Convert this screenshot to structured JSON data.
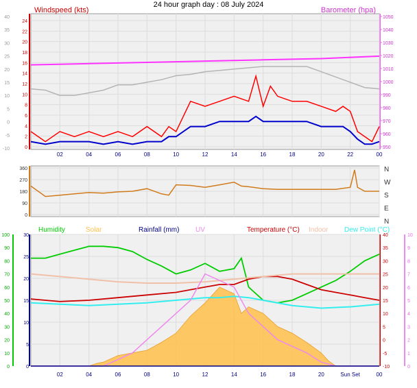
{
  "title": "24 hour graph day : 08 July 2024",
  "colors": {
    "wind": "#ff0000",
    "wind_avg": "#0000cc",
    "baro": "#ff33ff",
    "temp_grey": "#b4b4b4",
    "dir": "#d07a1a",
    "humidity": "#00cc00",
    "solar": "#ffc04a",
    "rain": "#000080",
    "uv": "#ee88ee",
    "temperature": "#cc0000",
    "indoor": "#f0c0a8",
    "dewpoint": "#33eeee",
    "panel_bg": "#f0f0f0"
  },
  "chart_data": [
    {
      "type": "line",
      "panel": "wind",
      "left_label": "Windspeed (kts)",
      "right_label": "Barometer (hpa)",
      "x_ticks": [
        "02",
        "04",
        "06",
        "08",
        "10",
        "12",
        "14",
        "16",
        "18",
        "20",
        "22",
        "00"
      ],
      "left_axis_ticks": [
        "24",
        "22",
        "20",
        "18",
        "16",
        "14",
        "12",
        "10",
        "8",
        "6",
        "4",
        "2",
        "0"
      ],
      "left_axis2_ticks": [
        "40",
        "35",
        "30",
        "25",
        "20",
        "15",
        "10",
        "5",
        "0",
        "-5",
        "-10"
      ],
      "right_axis_ticks": [
        "1050",
        "1040",
        "1030",
        "1020",
        "1010",
        "1000",
        "990",
        "980",
        "970",
        "960",
        "950"
      ],
      "ylim_wind": [
        0,
        25
      ],
      "ylim_baro": [
        945,
        1050
      ],
      "series": [
        {
          "name": "gust",
          "color_key": "wind",
          "x": [
            0,
            1,
            2,
            3,
            4,
            5,
            6,
            7,
            8,
            9,
            9.5,
            10,
            11,
            12,
            13,
            14,
            15,
            15.5,
            16,
            16.5,
            17,
            18,
            19,
            20,
            21,
            21.5,
            22,
            22.5,
            23,
            23.5,
            24
          ],
          "y": [
            3,
            1,
            3,
            2,
            3,
            2,
            3,
            2,
            4,
            2,
            4,
            3,
            9,
            8,
            9,
            10,
            9,
            14,
            8,
            12,
            10,
            9,
            9,
            8,
            7,
            8,
            7,
            3,
            2,
            1,
            4
          ]
        },
        {
          "name": "average",
          "color_key": "wind_avg",
          "x": [
            0,
            1,
            2,
            3,
            4,
            5,
            6,
            7,
            8,
            9,
            9.5,
            10,
            11,
            12,
            13,
            14,
            15,
            15.5,
            16,
            16.5,
            17,
            18,
            19,
            20,
            21,
            21.5,
            22,
            22.5,
            23,
            23.5,
            24
          ],
          "y": [
            1,
            0.5,
            1,
            1,
            1,
            0.5,
            1,
            0.5,
            1,
            1,
            2,
            2,
            4,
            4,
            5,
            5,
            5,
            6,
            5,
            5,
            5,
            5,
            5,
            4,
            4,
            4,
            3,
            1.5,
            0.5,
            0.5,
            1
          ]
        },
        {
          "name": "barometer",
          "color_key": "baro",
          "x": [
            0,
            4,
            8,
            12,
            16,
            20,
            24
          ],
          "y": [
            1011,
            1012,
            1013,
            1014,
            1015,
            1016,
            1018
          ]
        },
        {
          "name": "temperature",
          "color_key": "temp_grey",
          "x": [
            0,
            1,
            2,
            3,
            4,
            5,
            6,
            7,
            8,
            9,
            10,
            11,
            12,
            13,
            14,
            15,
            16,
            17,
            18,
            19,
            20,
            21,
            22,
            23,
            24
          ],
          "y": [
            12.5,
            12,
            10,
            10,
            11,
            12,
            14,
            14,
            15,
            16,
            17.5,
            18,
            19,
            19.5,
            20,
            20.5,
            21,
            21,
            21,
            21,
            19,
            17,
            15,
            13,
            12.5
          ]
        }
      ]
    },
    {
      "type": "line",
      "panel": "direction",
      "left_axis_ticks": [
        "360",
        "270",
        "180",
        "90",
        "0"
      ],
      "right_axis_ticks": [
        "N",
        "W",
        "S",
        "E",
        "N"
      ],
      "ylim": [
        0,
        360
      ],
      "series": [
        {
          "name": "direction",
          "color_key": "dir",
          "x": [
            0,
            1,
            2,
            3,
            4,
            5,
            6,
            7,
            8,
            9,
            9.5,
            10,
            11,
            12,
            13,
            14,
            14.5,
            15,
            16,
            17,
            18,
            19,
            20,
            21,
            22,
            22.3,
            22.5,
            23,
            24
          ],
          "y": [
            220,
            140,
            150,
            160,
            170,
            165,
            175,
            180,
            200,
            160,
            150,
            230,
            225,
            210,
            230,
            250,
            220,
            215,
            200,
            195,
            195,
            195,
            195,
            195,
            210,
            345,
            210,
            180,
            180
          ]
        }
      ]
    },
    {
      "type": "line",
      "panel": "atmosphere",
      "legend": [
        "Humidity",
        "Solar",
        "Rainfall (mm)",
        "UV",
        "Temperature (°C)",
        "Indoor",
        "Dew Point (°C)"
      ],
      "x_ticks": [
        "02",
        "04",
        "06",
        "08",
        "10",
        "12",
        "14",
        "16",
        "18",
        "20",
        "Sun Set",
        "00"
      ],
      "left_axis_humidity_ticks": [
        "100",
        "90",
        "80",
        "70",
        "60",
        "50",
        "40",
        "30",
        "20",
        "10",
        "0"
      ],
      "left_axis_rain_ticks": [
        "30",
        "25",
        "20",
        "15",
        "10",
        "5",
        "0"
      ],
      "right_axis_temp_ticks": [
        "40",
        "35",
        "30",
        "25",
        "20",
        "15",
        "10",
        "5",
        "0",
        "-5",
        "-10"
      ],
      "right_axis_uv_ticks": [
        "10",
        "9",
        "8",
        "7",
        "6",
        "5",
        "4",
        "3",
        "2",
        "1",
        "0"
      ],
      "ylim_humidity": [
        0,
        100
      ],
      "ylim_temp": [
        -10,
        40
      ],
      "ylim_uv": [
        0,
        10
      ],
      "series": [
        {
          "name": "Humidity",
          "color_key": "humidity",
          "axis": "humidity",
          "x": [
            0,
            1,
            2,
            3,
            4,
            5,
            6,
            7,
            8,
            9,
            10,
            11,
            12,
            13,
            14,
            14.5,
            15,
            16,
            17,
            18,
            19,
            20,
            21,
            22,
            23,
            24
          ],
          "y": [
            82,
            82,
            85,
            88,
            91,
            91,
            90,
            87,
            81,
            76,
            70,
            73,
            78,
            72,
            74,
            82,
            60,
            50,
            48,
            50,
            55,
            60,
            65,
            72,
            80,
            85
          ]
        },
        {
          "name": "Solar",
          "color_key": "solar",
          "axis": "humidity",
          "x": [
            0,
            4,
            4.5,
            5,
            6,
            7,
            8,
            9,
            10,
            11,
            12,
            13,
            14,
            14.5,
            15,
            16,
            17,
            18,
            19,
            20,
            20.5,
            21,
            24
          ],
          "y": [
            0,
            0,
            2,
            3,
            8,
            10,
            12,
            18,
            25,
            38,
            48,
            60,
            55,
            40,
            45,
            40,
            30,
            25,
            18,
            10,
            4,
            0,
            0
          ]
        },
        {
          "name": "Temperature (°C)",
          "color_key": "temperature",
          "axis": "temp",
          "x": [
            0,
            2,
            4,
            6,
            8,
            10,
            11,
            12,
            13,
            14,
            15,
            16,
            17,
            18,
            19,
            20,
            21,
            22,
            23,
            24
          ],
          "y": [
            15.5,
            14.5,
            15,
            16,
            17,
            18,
            19,
            20,
            21,
            21,
            23,
            24,
            24,
            23,
            21,
            19,
            18,
            17,
            16,
            15
          ]
        },
        {
          "name": "Indoor",
          "color_key": "indoor",
          "axis": "temp",
          "x": [
            0,
            2,
            4,
            6,
            8,
            10,
            12,
            14,
            16,
            18,
            20,
            22,
            24
          ],
          "y": [
            25,
            24,
            23,
            22,
            21.5,
            21.5,
            22,
            23,
            24,
            25,
            25,
            25,
            25
          ]
        },
        {
          "name": "Dew Point (°C)",
          "color_key": "dewpoint",
          "axis": "temp",
          "x": [
            0,
            2,
            4,
            6,
            8,
            10,
            12,
            13,
            14,
            15,
            16,
            18,
            20,
            22,
            24
          ],
          "y": [
            14,
            13.5,
            13,
            13.5,
            14,
            15,
            16,
            16,
            16.5,
            16,
            15,
            13,
            12,
            12.5,
            13.5
          ]
        },
        {
          "name": "UV",
          "color_key": "uv",
          "axis": "uv",
          "x": [
            0,
            5,
            6,
            7,
            8,
            9,
            10,
            11,
            12,
            13,
            14,
            14.5,
            15,
            16,
            17,
            18,
            19,
            20,
            21,
            24
          ],
          "y": [
            0,
            0,
            0.5,
            1,
            2,
            3,
            4,
            5,
            7,
            6.5,
            6,
            5,
            4,
            3,
            2,
            1.5,
            1,
            0.3,
            0,
            0
          ]
        },
        {
          "name": "Rainfall (mm)",
          "color_key": "rain",
          "axis": "rain",
          "x": [
            0,
            24
          ],
          "y": [
            0,
            0
          ]
        }
      ]
    }
  ]
}
